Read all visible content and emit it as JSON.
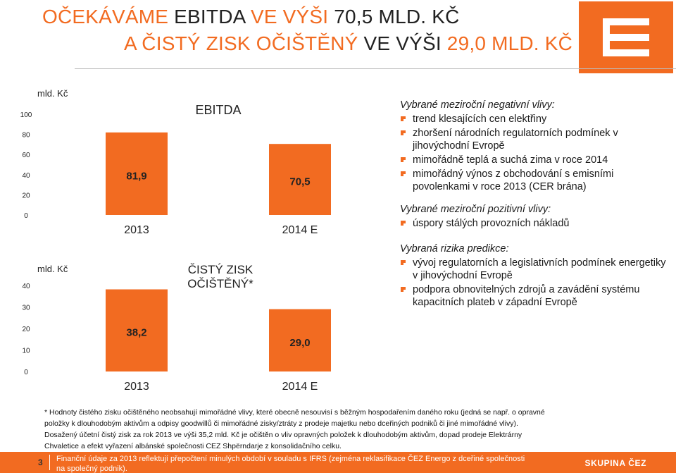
{
  "title": {
    "line1": [
      {
        "text": "OČEKÁVÁME ",
        "accent": true
      },
      {
        "text": "EBITDA ",
        "accent": false
      },
      {
        "text": "VE VÝŠI ",
        "accent": true
      },
      {
        "text": "70,5 MLD. KČ",
        "accent": false
      }
    ],
    "line2": [
      {
        "text": "A ČISTÝ ZISK OČIŠTĚNÝ ",
        "accent": true
      },
      {
        "text": "VE VÝŠI ",
        "accent": false
      },
      {
        "text": "29,0 MLD. KČ",
        "accent": true
      }
    ]
  },
  "logo": {
    "name": "cez-logo-icon"
  },
  "colors": {
    "accent": "#f26b21",
    "bar": "#f26b21",
    "footer": "#f26b21",
    "text": "#1a1a1a"
  },
  "chart_data": [
    {
      "type": "bar",
      "title": "EBITDA",
      "unit_label": "mld. Kč",
      "categories": [
        "2013",
        "2014 E"
      ],
      "values": [
        81.9,
        70.5
      ],
      "data_labels": [
        "81,9",
        "70,5"
      ],
      "yticks": [
        0,
        20,
        40,
        60,
        80,
        100
      ],
      "ylim": [
        0,
        100
      ]
    },
    {
      "type": "bar",
      "title": "ČISTÝ ZISK OČIŠTĚNÝ*",
      "unit_label": "mld. Kč",
      "categories": [
        "2013",
        "2014 E"
      ],
      "values": [
        38.2,
        29.0
      ],
      "data_labels": [
        "38,2",
        "29,0"
      ],
      "yticks": [
        0,
        10,
        20,
        30,
        40
      ],
      "ylim": [
        0,
        40
      ]
    }
  ],
  "notes": {
    "negative_heading": "Vybrané meziroční negativní vlivy:",
    "negative": [
      "trend klesajících cen elektřiny",
      "zhoršení národních regulatorních podmínek v jihovýchodní Evropě",
      "mimořádně teplá a suchá zima v roce 2014",
      "mimořádný výnos z obchodování s emisními povolenkami v roce 2013 (CER brána)"
    ],
    "positive_heading": "Vybrané meziroční pozitivní vlivy:",
    "positive": [
      "úspory stálých provozních nákladů"
    ],
    "risks_heading": "Vybraná rizika predikce:",
    "risks": [
      "vývoj regulatorních a legislativních podmínek energetiky v jihovýchodní Evropě",
      "podpora obnovitelných zdrojů a zavádění systému kapacitních plateb v západní Evropě"
    ]
  },
  "footnote": {
    "lines": [
      "* Hodnoty čistého zisku očištěného neobsahují mimořádné vlivy, které obecně nesouvisí s běžným hospodařením daného roku (jedná se např. o opravné",
      "položky k dlouhodobým aktivům a odpisy goodwillů či mimořádné zisky/ztráty z prodeje majetku nebo dceřiných podniků či jiné mimořádné vlivy).",
      "Dosažený účetní čistý zisk za rok 2013 ve výši 35,2 mld. Kč je očištěn o vliv opravných položek k dlouhodobým aktivům, dopad prodeje Elektrárny",
      "Chvaletice a efekt vyřazení albánské společnosti CEZ Shpërndarje z konsolidačního celku."
    ]
  },
  "footer": {
    "page_number": "3",
    "text": "Finanční údaje za 2013 reflektují přepočtení minulých období v souladu s IFRS (zejména reklasifikace ČEZ Energo z dceřiné společnosti na společný podnik).",
    "brand": "SKUPINA ČEZ"
  }
}
